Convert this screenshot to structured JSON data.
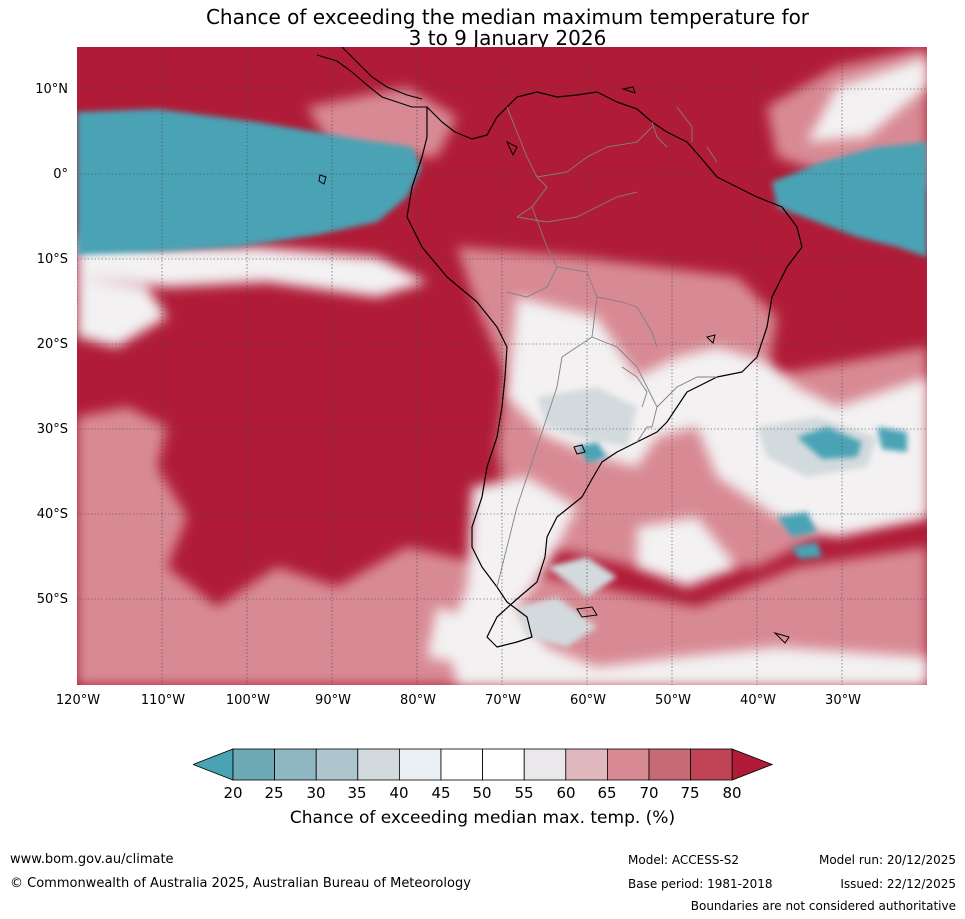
{
  "title": {
    "line1": "Chance of exceeding the median maximum temperature for",
    "line2": "3 to 9 January 2026"
  },
  "map": {
    "lat_labels": [
      "10°N",
      "0°",
      "10°S",
      "20°S",
      "30°S",
      "40°S",
      "50°S"
    ],
    "lon_labels": [
      "120°W",
      "110°W",
      "100°W",
      "90°W",
      "80°W",
      "70°W",
      "60°W",
      "50°W",
      "40°W",
      "30°W"
    ],
    "colors": {
      "hot_high": "#b01c37",
      "hot_mid": "#c04456",
      "cool_low": "#4aa3b5",
      "coast": "#000000",
      "border": "#808080"
    }
  },
  "colorbar": {
    "ticks": [
      "20",
      "25",
      "30",
      "35",
      "40",
      "45",
      "50",
      "55",
      "60",
      "65",
      "70",
      "75",
      "80"
    ],
    "colors": [
      "#4aa3b5",
      "#6ea9b6",
      "#8fb7c3",
      "#adc6cd",
      "#d3dadd",
      "#e9eff2",
      "#ffffff",
      "#ffffff",
      "#eae8ea",
      "#e1b8be",
      "#d88a94",
      "#c76a76",
      "#c04456",
      "#b01c37"
    ],
    "label": "Chance of exceeding median max. temp. (%)"
  },
  "footer": {
    "website": "www.bom.gov.au/climate",
    "copyright": "© Commonwealth of Australia 2025, Australian Bureau of Meteorology",
    "model": "Model: ACCESS-S2",
    "base_period": "Base period: 1981-2018",
    "model_run": "Model run: 20/12/2025",
    "issued": "Issued: 22/12/2025",
    "disclaimer": "Boundaries are not considered authoritative"
  }
}
